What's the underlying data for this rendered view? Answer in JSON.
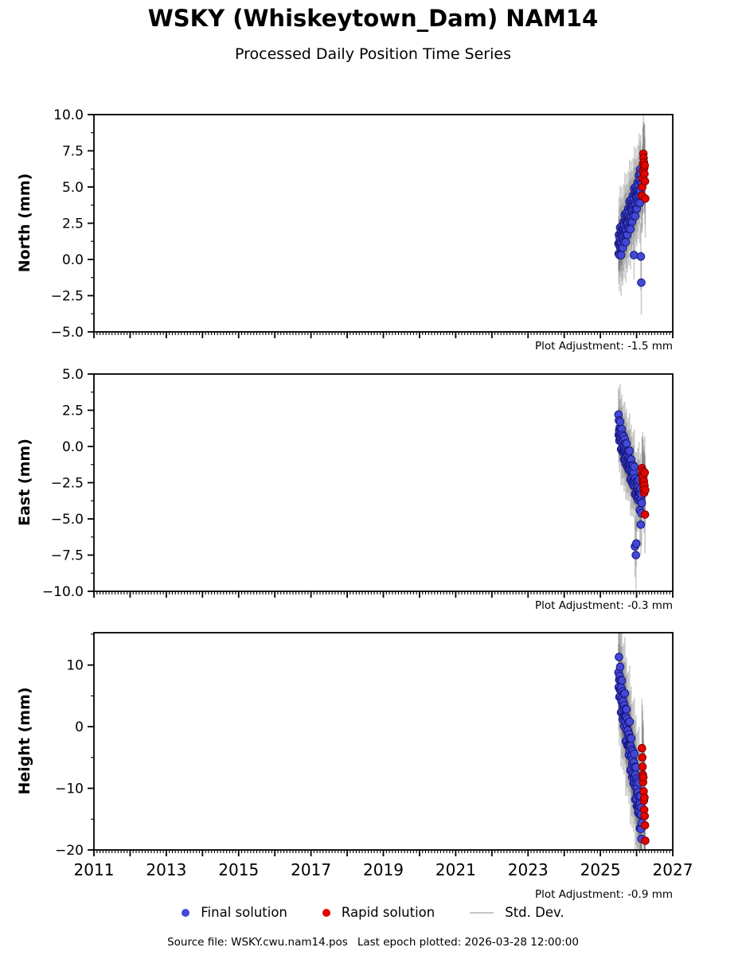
{
  "header": {
    "title": "WSKY (Whiskeytown_Dam) NAM14",
    "subtitle": "Processed Daily Position Time Series"
  },
  "footer": {
    "source_file": "Source file: WSKY.cwu.nam14.pos",
    "last_epoch": "Last epoch plotted: 2026-03-28 12:00:00"
  },
  "chart_data": {
    "type": "scatter",
    "title": "WSKY (Whiskeytown_Dam) NAM14",
    "subtitle": "Processed Daily Position Time Series",
    "x_axis": {
      "lim": [
        2011,
        2027
      ],
      "labeled_tick_values": [
        2011,
        2013,
        2015,
        2017,
        2019,
        2021,
        2023,
        2025,
        2027
      ],
      "tick_labels": [
        "2011",
        "2013",
        "2015",
        "2017",
        "2019",
        "2021",
        "2023",
        "2025",
        "2027"
      ],
      "major_tick_step_years": 1,
      "minor_ticks_per_year": 12
    },
    "std_dev": {
      "label": "Std. Dev.",
      "color": "#c4c4c4",
      "bar_color": "#787878"
    },
    "series": {
      "final": {
        "label": "Final solution",
        "color": "#4349d6",
        "edge_color": "#15157d",
        "epochs": [
          2025.5,
          2025.507,
          2025.513,
          2025.52,
          2025.526,
          2025.533,
          2025.539,
          2025.546,
          2025.552,
          2025.559,
          2025.565,
          2025.572,
          2025.578,
          2025.585,
          2025.591,
          2025.598,
          2025.604,
          2025.611,
          2025.617,
          2025.624,
          2025.63,
          2025.637,
          2025.643,
          2025.65,
          2025.656,
          2025.663,
          2025.669,
          2025.676,
          2025.682,
          2025.689,
          2025.695,
          2025.702,
          2025.708,
          2025.715,
          2025.721,
          2025.728,
          2025.734,
          2025.741,
          2025.747,
          2025.754,
          2025.76,
          2025.767,
          2025.773,
          2025.78,
          2025.786,
          2025.793,
          2025.799,
          2025.806,
          2025.812,
          2025.819,
          2025.825,
          2025.832,
          2025.838,
          2025.845,
          2025.851,
          2025.858,
          2025.864,
          2025.871,
          2025.877,
          2025.884,
          2025.89,
          2025.897,
          2025.903,
          2025.91,
          2025.916,
          2025.923,
          2025.929,
          2025.936,
          2025.942,
          2025.949,
          2025.955,
          2025.962,
          2025.968,
          2025.975,
          2025.981,
          2025.988,
          2025.994,
          2026.001,
          2026.007,
          2026.014,
          2026.02,
          2026.027,
          2026.033,
          2026.04,
          2026.046,
          2026.053,
          2026.059,
          2026.066,
          2026.072,
          2026.079,
          2026.085,
          2026.092,
          2026.098,
          2026.105,
          2026.111,
          2026.118,
          2026.124,
          2026.131,
          2026.137,
          2026.144
        ]
      },
      "rapid": {
        "label": "Rapid solution",
        "color": "#e10600",
        "edge_color": "#7d0000",
        "epochs": [
          2026.15,
          2026.158,
          2026.165,
          2026.173,
          2026.18,
          2026.188,
          2026.195,
          2026.203,
          2026.21,
          2026.218,
          2026.225,
          2026.233,
          2026.24
        ]
      }
    },
    "panels": [
      {
        "name": "north",
        "ylabel": "North (mm)",
        "ylim": [
          -5,
          10
        ],
        "ytick_values": [
          10,
          7.5,
          5,
          2.5,
          0,
          -2.5,
          -5
        ],
        "ytick_labels": [
          "10.0",
          "7.5",
          "5.0",
          "2.5",
          "0.0",
          "−2.5",
          "−5.0"
        ],
        "y_minor_step": 1.25,
        "adjustment_label": "Plot Adjustment: -1.5 mm",
        "final_y": [
          1.1,
          0.4,
          1.7,
          1.0,
          0.3,
          1.5,
          0.9,
          2.2,
          0.8,
          1.2,
          1.9,
          0.3,
          1.7,
          1.1,
          2.3,
          0.8,
          1.7,
          2.1,
          0.8,
          1.6,
          2.0,
          1.3,
          2.6,
          1.9,
          1.2,
          2.4,
          1.8,
          3.1,
          1.7,
          2.1,
          2.8,
          1.2,
          2.6,
          2.0,
          3.2,
          1.7,
          2.6,
          3.0,
          1.7,
          2.5,
          2.9,
          2.2,
          3.5,
          2.8,
          2.1,
          3.3,
          2.7,
          4.0,
          2.6,
          3.0,
          3.7,
          2.1,
          3.5,
          2.9,
          4.1,
          2.6,
          3.5,
          3.9,
          2.6,
          3.4,
          3.8,
          3.1,
          4.4,
          3.7,
          3.0,
          4.2,
          0.3,
          4.9,
          3.5,
          3.9,
          4.6,
          3.0,
          4.4,
          3.8,
          5.0,
          3.5,
          4.4,
          4.8,
          3.5,
          4.3,
          4.7,
          4.0,
          5.3,
          4.6,
          3.9,
          5.1,
          4.5,
          5.8,
          4.4,
          4.8,
          5.5,
          3.9,
          6.2,
          4.7,
          5.9,
          0.2,
          5.3,
          -1.6,
          4.4,
          5.2
        ],
        "final_err": [
          1.9,
          2.1,
          2.6,
          1.6,
          2.5,
          2.1,
          1.7,
          2.9,
          2.0,
          1.5,
          2.3,
          2.8,
          2.0,
          1.9,
          2.7,
          2.3,
          1.7,
          2.2,
          2.6,
          1.6,
          1.9,
          2.1,
          2.6,
          1.6,
          2.5,
          2.1,
          1.7,
          2.9,
          2.0,
          1.5,
          2.3,
          2.8,
          2.0,
          1.9,
          2.7,
          2.3,
          1.7,
          2.2,
          2.6,
          1.6,
          1.9,
          2.1,
          2.6,
          1.6,
          2.5,
          2.1,
          1.7,
          2.9,
          2.0,
          1.5,
          2.3,
          2.8,
          2.0,
          1.9,
          2.7,
          2.3,
          1.7,
          2.2,
          2.6,
          1.6,
          1.9,
          2.1,
          2.6,
          1.6,
          2.5,
          2.1,
          1.7,
          2.9,
          2.0,
          1.5,
          2.3,
          2.8,
          2.0,
          1.9,
          2.7,
          2.3,
          1.7,
          2.2,
          2.6,
          1.6,
          1.9,
          2.1,
          2.6,
          1.6,
          2.5,
          2.1,
          1.7,
          2.9,
          2.0,
          1.5,
          2.3,
          2.8,
          2.0,
          1.9,
          2.7,
          2.3,
          1.7,
          2.2,
          2.6,
          1.6
        ],
        "rapid_y": [
          4.4,
          5.0,
          5.6,
          6.1,
          6.6,
          7.3,
          7.0,
          6.7,
          6.3,
          5.9,
          6.5,
          5.4,
          4.2
        ],
        "rapid_err": [
          2.5,
          2.8,
          2.4,
          3.0,
          2.6,
          2.9,
          2.5,
          2.7,
          3.1,
          2.6,
          2.8,
          3.0,
          2.7
        ]
      },
      {
        "name": "east",
        "ylabel": "East (mm)",
        "ylim": [
          -10,
          5
        ],
        "ytick_values": [
          5,
          2.5,
          0,
          -2.5,
          -5,
          -7.5,
          -10
        ],
        "ytick_labels": [
          "5.0",
          "2.5",
          "0.0",
          "−2.5",
          "−5.0",
          "−7.5",
          "−10.0"
        ],
        "y_minor_step": 1.25,
        "adjustment_label": "Plot Adjustment: -0.3 mm",
        "final_y": [
          2.2,
          0.8,
          1.8,
          1.1,
          0.4,
          1.3,
          0.7,
          1.7,
          0.5,
          0.7,
          1.2,
          -0.2,
          0.9,
          0.3,
          1.2,
          -0.1,
          0.5,
          0.8,
          -0.4,
          0.1,
          0.4,
          -0.3,
          0.7,
          -0.2,
          -0.9,
          0.1,
          -0.3,
          0.5,
          -0.9,
          -0.3,
          0.2,
          -1.2,
          -0.2,
          -0.7,
          0.2,
          -1.1,
          -0.5,
          -0.3,
          -1.4,
          -0.9,
          -0.6,
          -1.3,
          -0.3,
          -0.9,
          -1.6,
          -0.8,
          -1.3,
          -0.3,
          -1.6,
          -1.3,
          -0.9,
          -2.3,
          -1.2,
          -1.8,
          -0.9,
          -2.2,
          -1.6,
          -1.3,
          -2.5,
          -1.9,
          -1.7,
          -2.4,
          -1.3,
          -2.0,
          -2.7,
          -1.8,
          -2.4,
          -1.4,
          -2.6,
          -2.4,
          -6.9,
          -3.3,
          -2.2,
          -2.8,
          -7.5,
          -3.2,
          -6.7,
          -2.4,
          -3.5,
          -3.0,
          -2.7,
          -3.4,
          -2.4,
          -3.0,
          -3.7,
          -2.8,
          -3.3,
          -2.3,
          -3.5,
          -3.2,
          -3.0,
          -4.4,
          -3.2,
          -3.7,
          -2.9,
          -5.4,
          -3.6,
          -3.3,
          -4.6,
          -3.9
        ],
        "final_err": [
          1.7,
          1.9,
          2.3,
          1.5,
          2.2,
          1.9,
          1.6,
          2.6,
          1.8,
          1.4,
          2.1,
          2.5,
          1.8,
          1.7,
          2.4,
          2.1,
          1.6,
          2.0,
          2.3,
          1.5,
          1.7,
          1.9,
          2.3,
          1.5,
          2.2,
          1.9,
          1.6,
          2.6,
          1.8,
          1.4,
          2.1,
          2.5,
          1.8,
          1.7,
          2.4,
          2.1,
          1.6,
          2.0,
          2.3,
          1.5,
          1.7,
          1.9,
          2.3,
          1.5,
          2.2,
          1.9,
          1.6,
          2.6,
          1.8,
          1.4,
          2.1,
          2.5,
          1.8,
          1.7,
          2.4,
          2.1,
          1.6,
          2.0,
          2.3,
          1.5,
          1.7,
          1.9,
          2.3,
          1.5,
          2.2,
          1.9,
          1.6,
          2.6,
          1.8,
          1.4,
          2.1,
          2.5,
          1.8,
          1.7,
          2.4,
          2.1,
          1.6,
          2.0,
          2.3,
          1.5,
          1.7,
          1.9,
          2.3,
          1.5,
          2.2,
          1.9,
          1.6,
          2.6,
          1.8,
          1.4,
          2.1,
          2.5,
          1.8,
          1.7,
          2.4,
          2.1,
          1.6,
          2.0,
          2.3,
          1.5
        ],
        "rapid_y": [
          -1.5,
          -1.9,
          -2.3,
          -1.7,
          -2.6,
          -2.1,
          -2.9,
          -2.4,
          -3.2,
          -2.7,
          -1.8,
          -4.7,
          -3.0
        ],
        "rapid_err": [
          2.2,
          2.5,
          2.1,
          2.7,
          2.3,
          2.6,
          2.2,
          2.4,
          2.8,
          2.3,
          2.5,
          2.7,
          2.4
        ]
      },
      {
        "name": "height",
        "ylabel": "Height (mm)",
        "ylim": [
          -20,
          15.25
        ],
        "ytick_values": [
          10,
          0,
          -10,
          -20
        ],
        "ytick_labels": [
          "10",
          "0",
          "−10",
          "−20"
        ],
        "y_minor_step": 5,
        "adjustment_label": "Plot Adjustment: -0.9 mm",
        "final_y": [
          8.8,
          6.4,
          11.3,
          7.6,
          4.8,
          8.2,
          6.0,
          9.7,
          5.0,
          5.9,
          7.6,
          2.3,
          6.3,
          4.1,
          7.5,
          2.5,
          4.8,
          5.7,
          1.2,
          3.3,
          4.1,
          1.7,
          5.3,
          2.9,
          0.1,
          3.5,
          1.8,
          5.4,
          0.7,
          1.7,
          2.9,
          -2.4,
          1.6,
          -0.4,
          2.8,
          -2.2,
          0.3,
          1.3,
          -3.0,
          -1.0,
          -0.6,
          -3.0,
          0.7,
          -1.7,
          -4.6,
          -1.2,
          -3.0,
          0.8,
          -3.9,
          -3.0,
          -1.8,
          -7.1,
          -3.1,
          -4.9,
          -1.9,
          -6.9,
          -4.6,
          -3.7,
          -8.2,
          -6.0,
          -5.3,
          -7.7,
          -4.0,
          -6.5,
          -9.2,
          -5.8,
          -8.0,
          -4.4,
          -9.1,
          -8.2,
          -6.5,
          -11.8,
          -7.8,
          -9.8,
          -6.6,
          -11.6,
          -9.2,
          -8.4,
          -12.9,
          -10.7,
          -10.0,
          -12.7,
          -8.8,
          -11.2,
          -14.0,
          -10.6,
          -12.8,
          -9.1,
          -13.8,
          -12.9,
          -11.2,
          -16.5,
          -12.5,
          -14.3,
          -11.3,
          -16.6,
          -14.2,
          -13.1,
          -18.2,
          -15.6
        ],
        "final_err": [
          6.4,
          7.0,
          8.2,
          5.8,
          7.9,
          7.0,
          6.1,
          9.1,
          6.7,
          5.5,
          7.6,
          8.8,
          6.7,
          6.4,
          8.5,
          7.6,
          6.1,
          7.3,
          8.2,
          5.8,
          6.4,
          7.0,
          8.2,
          5.8,
          7.9,
          7.0,
          6.1,
          9.1,
          6.7,
          5.5,
          7.6,
          8.8,
          6.7,
          6.4,
          8.5,
          7.6,
          6.1,
          7.3,
          8.2,
          5.8,
          6.4,
          7.0,
          8.2,
          5.8,
          7.9,
          7.0,
          6.1,
          9.1,
          6.7,
          5.5,
          7.6,
          8.8,
          6.7,
          6.4,
          8.5,
          7.6,
          6.1,
          7.3,
          8.2,
          5.8,
          6.4,
          7.0,
          8.2,
          5.8,
          7.9,
          7.0,
          6.1,
          9.1,
          6.7,
          5.5,
          7.6,
          8.8,
          6.7,
          6.4,
          8.5,
          7.6,
          6.1,
          7.3,
          8.2,
          5.8,
          6.4,
          7.0,
          8.2,
          5.8,
          7.9,
          7.0,
          6.1,
          9.1,
          6.7,
          5.5,
          7.6,
          8.8,
          6.7,
          6.4,
          8.5,
          7.6,
          6.1,
          7.3,
          8.2,
          5.8
        ],
        "rapid_y": [
          -3.5,
          -5.0,
          -6.5,
          -7.8,
          -9.0,
          -8.2,
          -10.5,
          -12.0,
          -13.5,
          -11.5,
          -14.5,
          -16.0,
          -18.5
        ],
        "rapid_err": [
          8.0,
          8.5,
          9.0,
          8.2,
          8.8,
          9.2,
          8.4,
          8.6,
          9.4,
          8.3,
          8.9,
          9.1,
          8.6
        ]
      }
    ]
  }
}
